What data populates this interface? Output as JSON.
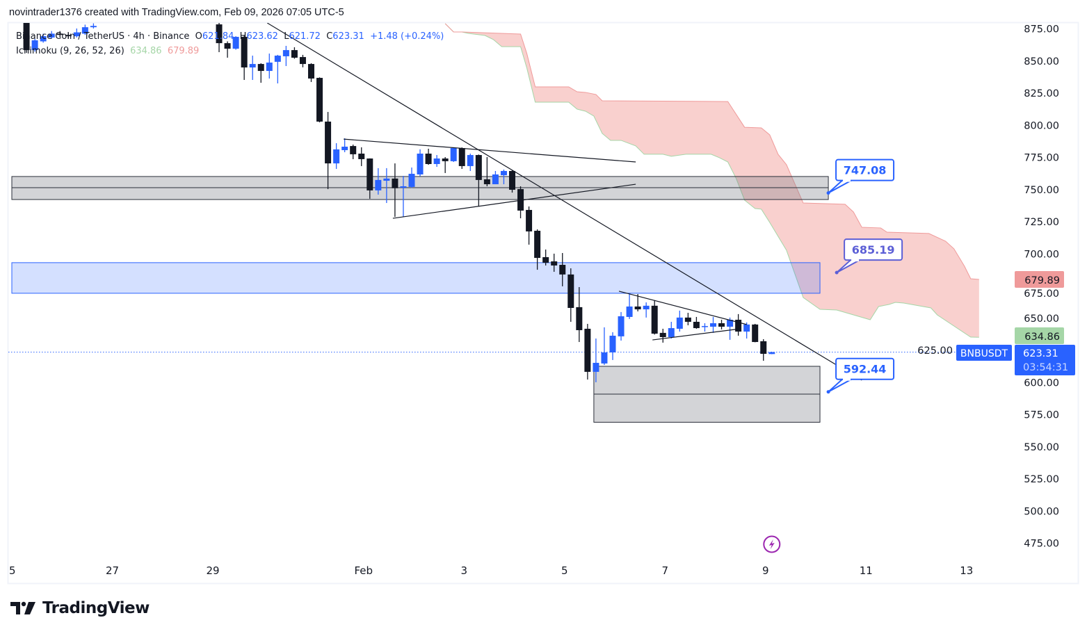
{
  "header": {
    "attribution": "novintrader1376 created with TradingView.com, Feb 09, 2026 07:05 UTC-5"
  },
  "legend": {
    "symbol": "Binance Coin / TetherUS · 4h · Binance",
    "o_label": "O",
    "o": "621.84",
    "h_label": "H",
    "h": "623.62",
    "l_label": "L",
    "l": "621.72",
    "c_label": "C",
    "c": "623.31",
    "change": "+1.48 (+0.24%)",
    "indicator": "Ichimoku (9, 26, 52, 26)",
    "indicator_value_1": "634.86",
    "indicator_value_2": "679.89"
  },
  "price_labels": {
    "span_b": "679.89",
    "span_a": "634.86",
    "symbol_tag": "BNBUSDT",
    "last_price": "623.31",
    "countdown": "03:54:31"
  },
  "logo": {
    "text": "TradingView"
  },
  "colors": {
    "up": "#2962ff",
    "down": "#131722",
    "cloud_fill": "#f9d0ce",
    "span_a": "#a5d6a7",
    "span_b": "#ef9a9a",
    "accent": "#2962ff",
    "zone_gray": "#d1d4dc",
    "zone_blue": "#d4e0fd",
    "event_icon": "#9c27b0"
  },
  "icons": {
    "event": "lightning-icon",
    "logo": "tradingview-logo-icon"
  },
  "chart_data": {
    "type": "candlestick",
    "symbol": "BNBUSDT",
    "interval": "4h",
    "first_candle_time": "Jan 25 07:00",
    "ylim": [
      470,
      882
    ],
    "y_ticks": [
      "875.00",
      "850.00",
      "825.00",
      "800.00",
      "775.00",
      "750.00",
      "725.00",
      "700.00",
      "675.00",
      "650.00",
      "625.00",
      "600.00",
      "575.00",
      "550.00",
      "525.00",
      "500.00",
      "475.00"
    ],
    "x_ticks": [
      {
        "label": "5",
        "t": "Jan 25 00:00"
      },
      {
        "label": "27",
        "t": "Jan 27 00:00"
      },
      {
        "label": "29",
        "t": "Jan 29 00:00"
      },
      {
        "label": "Feb",
        "t": "Feb 1 00:00"
      },
      {
        "label": "3",
        "t": "Feb 3 00:00"
      },
      {
        "label": "5",
        "t": "Feb 5 00:00"
      },
      {
        "label": "7",
        "t": "Feb 7 00:00"
      },
      {
        "label": "9",
        "t": "Feb 9 00:00"
      },
      {
        "label": "11",
        "t": "Feb 11 00:00"
      },
      {
        "label": "13",
        "t": "Feb 13 00:00"
      }
    ],
    "candles_ohlc": [
      [
        880,
        882,
        856,
        858.2
      ],
      [
        858.2,
        867,
        857,
        865.8
      ],
      [
        865,
        871,
        864,
        869
      ],
      [
        868,
        873,
        867,
        871
      ],
      [
        871,
        873,
        868,
        870
      ],
      [
        870,
        872,
        867,
        869
      ],
      [
        869,
        875,
        868,
        872
      ],
      [
        871,
        878,
        870,
        876
      ],
      [
        876,
        879,
        875,
        877
      ],
      null,
      null,
      null,
      null,
      null,
      null,
      null,
      null,
      null,
      null,
      null,
      null,
      null,
      null,
      [
        878.2,
        885,
        856.6,
        863.6
      ],
      [
        863.6,
        865,
        852.3,
        859.3
      ],
      [
        859.3,
        869,
        858.5,
        868.5
      ],
      [
        868.5,
        869.5,
        835.0,
        844.7
      ],
      [
        844.7,
        853.9,
        835.0,
        847.4
      ],
      [
        847.4,
        848,
        832.8,
        842.0
      ],
      [
        842.0,
        855.5,
        836.1,
        848.5
      ],
      [
        849.1,
        854.5,
        832.3,
        853.9
      ],
      [
        853.4,
        861.5,
        845.8,
        858.2
      ],
      [
        858.2,
        860.4,
        851.5,
        852.3
      ],
      [
        852.8,
        854.5,
        844.8,
        847.4
      ],
      [
        847.4,
        848,
        833.4,
        836.1
      ],
      [
        836.6,
        837,
        802.0,
        802.6
      ],
      [
        802.6,
        810.1,
        750.1,
        770.1
      ],
      [
        770.1,
        785.8,
        765.8,
        781.0
      ],
      [
        780.4,
        789.6,
        778.8,
        783.1
      ],
      [
        783.6,
        784.7,
        773.4,
        777.2
      ],
      [
        777.7,
        782.6,
        768.0,
        773.4
      ],
      [
        773.9,
        774,
        742.6,
        749.1
      ],
      [
        749.1,
        766.4,
        745.8,
        757.2
      ],
      [
        756.6,
        766.4,
        739.3,
        758.3
      ],
      [
        758.3,
        770.1,
        728.5,
        750.8
      ],
      [
        751.2,
        760.4,
        728.5,
        752.3
      ],
      [
        751.8,
        766.9,
        751,
        762.0
      ],
      [
        761.5,
        781.0,
        760,
        777.7
      ],
      [
        777.7,
        781.5,
        769,
        769.6
      ],
      [
        769.6,
        776.6,
        767.4,
        773.9
      ],
      [
        773.9,
        775.0,
        762.6,
        771.8
      ],
      [
        771.8,
        782.6,
        771.2,
        782.0
      ],
      [
        782.0,
        782.5,
        765.8,
        768.0
      ],
      [
        768.0,
        777.7,
        764.2,
        776.6
      ],
      [
        776.6,
        777,
        736.6,
        757.2
      ],
      [
        757.7,
        775.0,
        752.3,
        753.9
      ],
      [
        753.9,
        764.2,
        753.9,
        761.5
      ],
      [
        760.9,
        765.3,
        753.9,
        764.2
      ],
      [
        764.2,
        764.5,
        747.4,
        749.6
      ],
      [
        750.1,
        752.3,
        727.4,
        733.4
      ],
      [
        733.9,
        736.6,
        706.9,
        717.2
      ],
      [
        717.7,
        718.8,
        687.4,
        696.6
      ],
      [
        697.2,
        703.1,
        690.7,
        692.8
      ],
      [
        693.9,
        699.9,
        685.8,
        690.7
      ],
      [
        691.2,
        700.4,
        674.5,
        683.7
      ],
      [
        683.7,
        688.5,
        646.9,
        657.7
      ],
      [
        658.3,
        673.9,
        631.2,
        640.4
      ],
      [
        641.5,
        645.3,
        602.0,
        608.0
      ],
      [
        608.0,
        633.9,
        599.9,
        615.0
      ],
      [
        614.5,
        642.6,
        613.4,
        623.1
      ],
      [
        623.1,
        638.8,
        617.2,
        636.1
      ],
      [
        635.6,
        654.5,
        632.3,
        651.2
      ],
      [
        650.7,
        669.1,
        649.1,
        658.8
      ],
      [
        658.8,
        668.5,
        655.0,
        656.6
      ],
      [
        656.6,
        662.0,
        650.2,
        659.4
      ],
      [
        659.4,
        663.7,
        637,
        637.7
      ],
      [
        638.3,
        641.5,
        630.7,
        635.0
      ],
      [
        635.0,
        646.9,
        633.9,
        642.0
      ],
      [
        641.5,
        655.6,
        639.3,
        650.2
      ],
      [
        650.2,
        653.9,
        644.2,
        646.9
      ],
      [
        646.9,
        650.7,
        641.5,
        642.0
      ],
      [
        643.1,
        645.8,
        639.3,
        643.6
      ],
      [
        643.1,
        650.7,
        638.3,
        645.8
      ],
      [
        645.8,
        648.5,
        641.0,
        643.1
      ],
      [
        643.1,
        650.2,
        632.9,
        648.5
      ],
      [
        648.5,
        652.9,
        636.1,
        639.3
      ],
      [
        639.3,
        646.4,
        633.9,
        644.8
      ],
      [
        644.8,
        645.3,
        631,
        631.2
      ],
      [
        631.8,
        633.4,
        616.6,
        622.0
      ],
      [
        621.84,
        623.62,
        621.72,
        623.31
      ]
    ],
    "last_price": 623.31,
    "ichimoku": {
      "span_a": [
        [
          "Feb 2 15:00",
          878.8
        ],
        [
          "Feb 2 19:00",
          872.3
        ],
        [
          "Feb 2 23:00",
          872.3
        ],
        [
          "Feb 3 02:00",
          871.2
        ],
        [
          "Feb 3 10:00",
          869.6
        ],
        [
          "Feb 3 14:00",
          866.4
        ],
        [
          "Feb 3 18:00",
          860.9
        ],
        [
          "Feb 4 03:00",
          860.9
        ],
        [
          "Feb 4 06:00",
          844.2
        ],
        [
          "Feb 4 10:00",
          817.7
        ],
        [
          "Feb 5 02:00",
          817.7
        ],
        [
          "Feb 5 06:00",
          812.3
        ],
        [
          "Feb 5 10:00",
          810.7
        ],
        [
          "Feb 5 14:00",
          806.9
        ],
        [
          "Feb 5 18:00",
          793.4
        ],
        [
          "Feb 5 22:00",
          788.0
        ],
        [
          "Feb 6 03:00",
          788.0
        ],
        [
          "Feb 6 10:00",
          783.7
        ],
        [
          "Feb 6 14:00",
          777.2
        ],
        [
          "Feb 6 23:00",
          777.2
        ],
        [
          "Feb 7 03:00",
          775.6
        ],
        [
          "Feb 7 10:00",
          777.2
        ],
        [
          "Feb 7 22:00",
          777.2
        ],
        [
          "Feb 8 02:00",
          774.5
        ],
        [
          "Feb 8 06:00",
          771.2
        ],
        [
          "Feb 8 10:00",
          758.3
        ],
        [
          "Feb 8 14:00",
          741.5
        ],
        [
          "Feb 8 19:00",
          735.0
        ],
        [
          "Feb 8 22:00",
          734.5
        ],
        [
          "Feb 9 02:00",
          724.2
        ],
        [
          "Feb 9 10:00",
          702.6
        ],
        [
          "Feb 9 18:00",
          665.8
        ],
        [
          "Feb 10 02:00",
          656.6
        ],
        [
          "Feb 10 10:00",
          656.1
        ],
        [
          "Feb 11 02:00",
          648.5
        ],
        [
          "Feb 11 06:00",
          658.8
        ],
        [
          "Feb 11 11:00",
          660.4
        ],
        [
          "Feb 11 14:00",
          662.0
        ],
        [
          "Feb 11 18:00",
          661.5
        ],
        [
          "Feb 12 07:00",
          657.7
        ],
        [
          "Feb 12 10:00",
          652.3
        ],
        [
          "Feb 13 02:00",
          635.0
        ],
        [
          "Feb 13 06:00",
          634.86
        ]
      ],
      "span_b": [
        [
          "Feb 2 15:00",
          878.8
        ],
        [
          "Feb 2 19:00",
          872.3
        ],
        [
          "Feb 2 23:00",
          872.3
        ],
        [
          "Feb 4 03:00",
          870.7
        ],
        [
          "Feb 4 06:00",
          855.5
        ],
        [
          "Feb 4 10:00",
          829.6
        ],
        [
          "Feb 5 02:00",
          829.6
        ],
        [
          "Feb 5 06:00",
          825.8
        ],
        [
          "Feb 5 10:00",
          825.3
        ],
        [
          "Feb 5 15:00",
          823.7
        ],
        [
          "Feb 5 18:00",
          818.8
        ],
        [
          "Feb 8 06:00",
          818.2
        ],
        [
          "Feb 8 14:00",
          798.2
        ],
        [
          "Feb 8 22:00",
          797.7
        ],
        [
          "Feb 9 02:00",
          792.3
        ],
        [
          "Feb 9 06:00",
          777.2
        ],
        [
          "Feb 9 10:00",
          769.1
        ],
        [
          "Feb 9 18:00",
          739.3
        ],
        [
          "Feb 10 14:00",
          738.3
        ],
        [
          "Feb 10 18:00",
          732.3
        ],
        [
          "Feb 10 22:00",
          720.4
        ],
        [
          "Feb 11 07:00",
          719.9
        ],
        [
          "Feb 11 10:00",
          716.6
        ],
        [
          "Feb 12 06:00",
          715.6
        ],
        [
          "Feb 12 14:00",
          709.6
        ],
        [
          "Feb 12 18:00",
          703.7
        ],
        [
          "Feb 12 23:00",
          690.2
        ],
        [
          "Feb 13 02:00",
          680.4
        ],
        [
          "Feb 13 06:00",
          679.89
        ]
      ]
    },
    "drawings": {
      "zones": [
        {
          "kind": "gray",
          "from": "Jan 25 00:00",
          "to": "Feb 10 06:00",
          "top": 759.9,
          "bottom": 742.0,
          "mid": 751.2
        },
        {
          "kind": "blue",
          "from": "Jan 25 00:00",
          "to": "Feb 10 02:00",
          "top": 692.9,
          "bottom": 669.1
        },
        {
          "kind": "gray",
          "from": "Feb 5 14:00",
          "to": "Feb 10 02:00",
          "top": 612.3,
          "bottom": 568.8,
          "mid": 590.7
        }
      ],
      "lines": [
        {
          "from": [
            "Jan 30 02:00",
            879.3
          ],
          "to": [
            "Feb 10 22:00",
            601.5
          ]
        },
        {
          "from": [
            "Jan 31 14:30",
            789.0
          ],
          "to": [
            "Feb 6 10:00",
            771.2
          ]
        },
        {
          "from": [
            "Feb 1 14:00",
            727.4
          ],
          "to": [
            "Feb 6 10:00",
            753.9
          ]
        },
        {
          "from": [
            "Feb 6 02:00",
            670.7
          ],
          "to": [
            "Feb 8 15:00",
            644.8
          ]
        },
        {
          "from": [
            "Feb 6 18:00",
            632.8
          ],
          "to": [
            "Feb 8 12:00",
            641.5
          ]
        }
      ],
      "callouts": [
        {
          "text": "747.08",
          "t": "Feb 10 06:00",
          "price": 747.08,
          "color": "#2962ff"
        },
        {
          "text": "685.19",
          "t": "Feb 10 10:00",
          "price": 685.19,
          "color": "#5c5fd6"
        },
        {
          "text": "592.44",
          "t": "Feb 10 06:00",
          "price": 592.44,
          "color": "#2962ff"
        }
      ],
      "event_marker": {
        "t": "Feb 9 03:00"
      }
    }
  }
}
